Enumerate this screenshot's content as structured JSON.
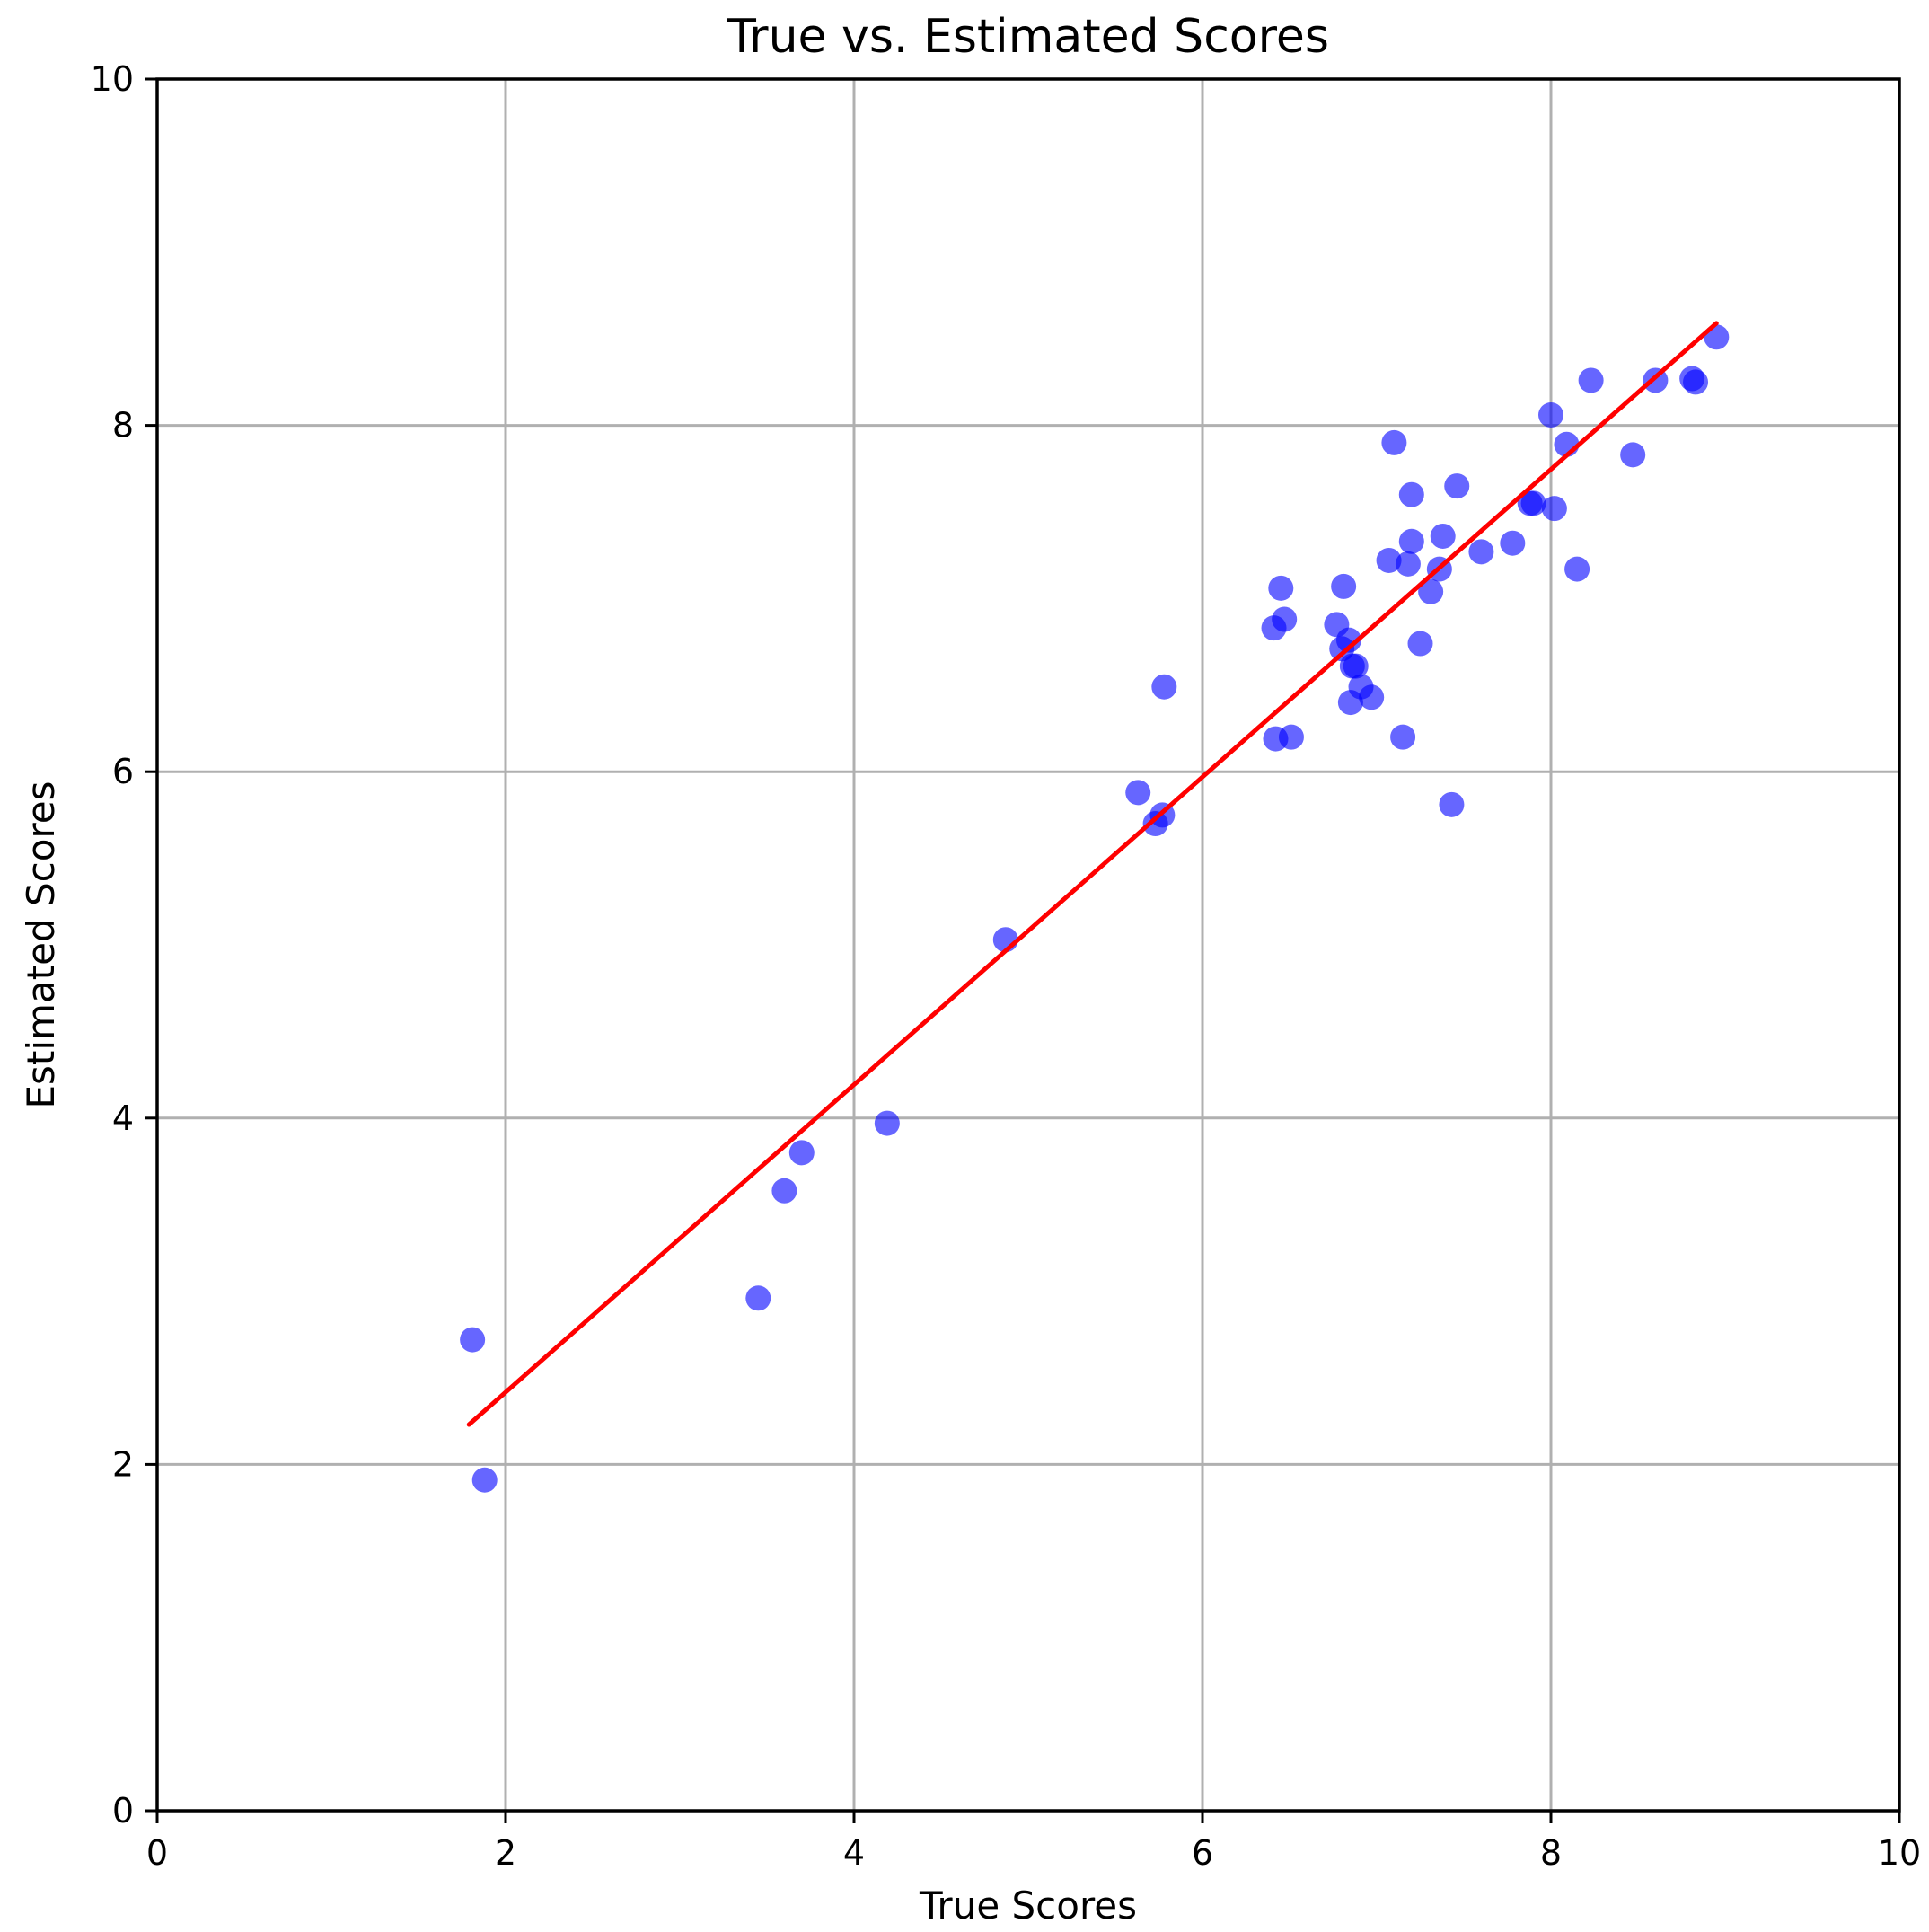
{
  "chart_data": {
    "type": "scatter",
    "title": "True vs. Estimated Scores",
    "xlabel": "True Scores",
    "ylabel": "Estimated Scores",
    "xlim": [
      0,
      10
    ],
    "ylim": [
      0,
      10
    ],
    "xticks": [
      "0",
      "2",
      "4",
      "6",
      "8",
      "10"
    ],
    "yticks": [
      "0",
      "2",
      "4",
      "6",
      "8",
      "10"
    ],
    "grid": true,
    "colors": {
      "points": "#0000ff",
      "fit_line": "#ff0000",
      "grid": "#b0b0b0"
    },
    "series": [
      {
        "kind": "points",
        "x": [
          1.81,
          1.88,
          3.45,
          3.6,
          3.7,
          4.19,
          4.87,
          5.63,
          5.73,
          5.77,
          5.78,
          6.41,
          6.42,
          6.45,
          6.47,
          6.51,
          6.77,
          6.8,
          6.81,
          6.84,
          6.85,
          6.86,
          6.88,
          6.91,
          6.97,
          7.07,
          7.1,
          7.15,
          7.18,
          7.2,
          7.2,
          7.25,
          7.31,
          7.36,
          7.38,
          7.43,
          7.46,
          7.6,
          7.78,
          7.88,
          7.9,
          8.0,
          8.02,
          8.09,
          8.15,
          8.23,
          8.47,
          8.6,
          8.81,
          8.83,
          8.95
        ],
        "y": [
          2.72,
          1.91,
          2.96,
          3.58,
          3.8,
          3.97,
          5.03,
          5.88,
          5.7,
          5.75,
          6.49,
          6.83,
          6.19,
          7.06,
          6.88,
          6.2,
          6.85,
          6.71,
          7.07,
          6.76,
          6.4,
          6.61,
          6.61,
          6.49,
          6.43,
          7.22,
          7.9,
          6.2,
          7.2,
          7.6,
          7.33,
          6.74,
          7.04,
          7.17,
          7.36,
          5.81,
          7.65,
          7.27,
          7.32,
          7.55,
          7.55,
          8.06,
          7.52,
          7.89,
          7.17,
          8.26,
          7.83,
          8.26,
          8.27,
          8.25,
          8.51
        ]
      },
      {
        "kind": "fit_line",
        "x": [
          1.79,
          8.95
        ],
        "y": [
          2.23,
          8.59
        ]
      }
    ]
  }
}
